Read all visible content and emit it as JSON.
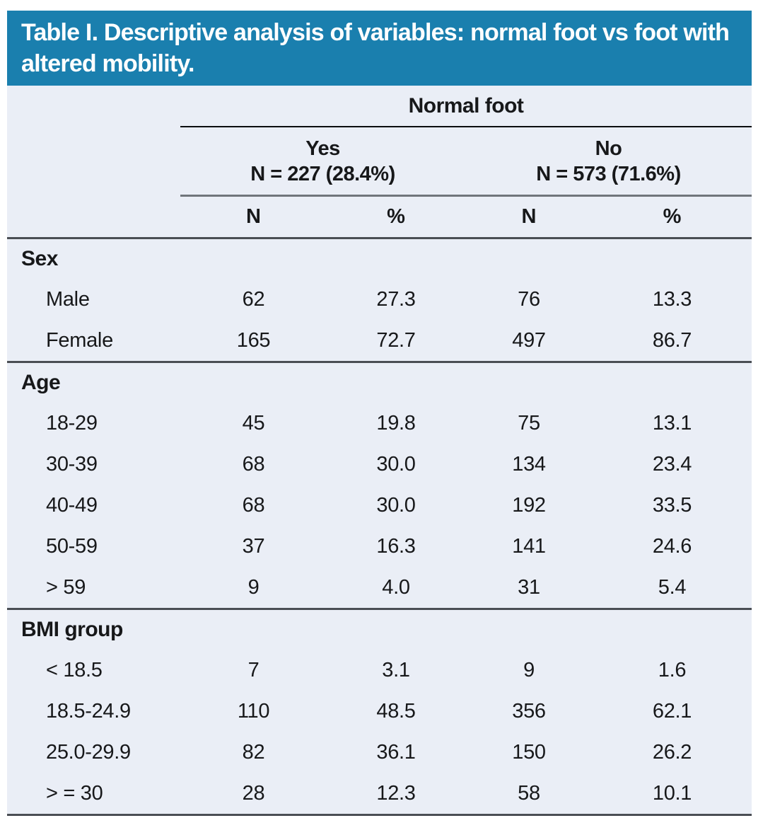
{
  "title": "Table I. Descriptive analysis of variables: normal foot vs foot with altered mobility.",
  "colors": {
    "header_bg": "#1a7fae",
    "body_bg": "#eaeef6",
    "text": "#17181a",
    "rule_black": "#0b0d0f",
    "rule_gray": "#70757b",
    "rule_dark": "#4a4e54"
  },
  "table": {
    "group_header": "Normal foot",
    "subgroups": [
      {
        "label": "Yes",
        "n_line": "N = 227 (28.4%)"
      },
      {
        "label": "No",
        "n_line": "N = 573 (71.6%)"
      }
    ],
    "col_headers": [
      "N",
      "%",
      "N",
      "%"
    ],
    "sections": [
      {
        "name": "Sex",
        "rows": [
          {
            "label": "Male",
            "values": [
              "62",
              "27.3",
              "76",
              "13.3"
            ]
          },
          {
            "label": "Female",
            "values": [
              "165",
              "72.7",
              "497",
              "86.7"
            ]
          }
        ]
      },
      {
        "name": "Age",
        "rows": [
          {
            "label": "18-29",
            "values": [
              "45",
              "19.8",
              "75",
              "13.1"
            ]
          },
          {
            "label": "30-39",
            "values": [
              "68",
              "30.0",
              "134",
              "23.4"
            ]
          },
          {
            "label": "40-49",
            "values": [
              "68",
              "30.0",
              "192",
              "33.5"
            ]
          },
          {
            "label": "50-59",
            "values": [
              "37",
              "16.3",
              "141",
              "24.6"
            ]
          },
          {
            "label": "> 59",
            "values": [
              "9",
              "4.0",
              "31",
              "5.4"
            ]
          }
        ]
      },
      {
        "name": "BMI group",
        "rows": [
          {
            "label": "< 18.5",
            "values": [
              "7",
              "3.1",
              "9",
              "1.6"
            ]
          },
          {
            "label": "18.5-24.9",
            "values": [
              "110",
              "48.5",
              "356",
              "62.1"
            ]
          },
          {
            "label": "25.0-29.9",
            "values": [
              "82",
              "36.1",
              "150",
              "26.2"
            ]
          },
          {
            "label": "> = 30",
            "values": [
              "28",
              "12.3",
              "58",
              "10.1"
            ]
          }
        ]
      }
    ]
  }
}
